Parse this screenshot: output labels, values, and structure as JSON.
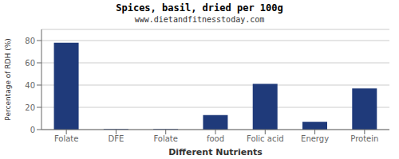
{
  "chart_data": {
    "type": "bar",
    "title": "Spices, basil, dried per 100g",
    "subtitle": "www.dietandfitnesstoday.com",
    "xlabel": "Different Nutrients",
    "ylabel": "Percentage of RDH (%)",
    "categories": [
      "Folate",
      "DFE",
      "Folate",
      "food",
      "Folic acid",
      "Energy",
      "Protein"
    ],
    "values": [
      78,
      0.5,
      0.5,
      13,
      41,
      7,
      37
    ],
    "color": "#1F3A7A",
    "ylim": [
      0,
      90
    ],
    "yticks": [
      0,
      20,
      40,
      60,
      80
    ],
    "grid": true
  }
}
